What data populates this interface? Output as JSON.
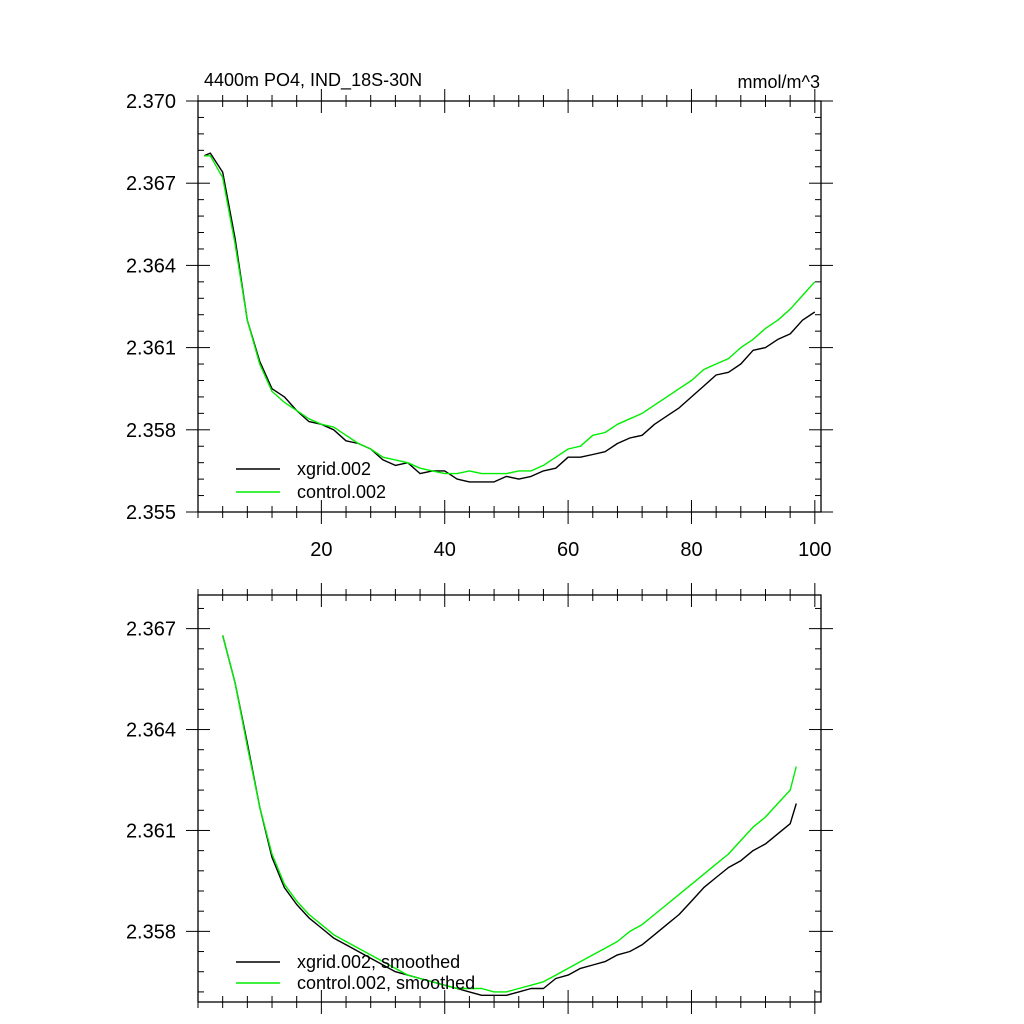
{
  "figure": {
    "title": "4400m PO4, IND_18S-30N",
    "units": "mmol/m^3"
  },
  "colors": {
    "series1": "#000000",
    "series2": "#00ee00",
    "axis": "#000000"
  },
  "chart_data": [
    {
      "type": "line",
      "title": "4400m PO4, IND_18S-30N",
      "units_label": "mmol/m^3",
      "xlabel": "",
      "ylabel": "",
      "xlim": [
        0,
        101
      ],
      "ylim": [
        2.355,
        2.37
      ],
      "xticks": [
        20,
        40,
        60,
        80,
        100
      ],
      "xtick_labels": [
        "20",
        "40",
        "60",
        "80",
        "100"
      ],
      "yticks": [
        2.355,
        2.358,
        2.361,
        2.364,
        2.367,
        2.37
      ],
      "ytick_labels": [
        "2.355",
        "2.358",
        "2.361",
        "2.364",
        "2.367",
        "2.370"
      ],
      "legend_position": "bottom-left",
      "series": [
        {
          "name": "xgrid.002",
          "color": "#000000",
          "x": [
            1,
            2,
            4,
            6,
            8,
            10,
            12,
            14,
            16,
            18,
            20,
            22,
            24,
            26,
            28,
            30,
            32,
            34,
            36,
            38,
            40,
            42,
            44,
            46,
            48,
            50,
            52,
            54,
            56,
            58,
            60,
            62,
            64,
            66,
            68,
            70,
            72,
            74,
            76,
            78,
            80,
            82,
            84,
            86,
            88,
            90,
            92,
            94,
            96,
            98,
            100
          ],
          "y": [
            2.368,
            2.3681,
            2.3674,
            2.365,
            2.362,
            2.3605,
            2.3595,
            2.3592,
            2.3587,
            2.3583,
            2.3582,
            2.358,
            2.3576,
            2.3575,
            2.3573,
            2.3569,
            2.3567,
            2.3568,
            2.3564,
            2.3565,
            2.3565,
            2.3562,
            2.3561,
            2.3561,
            2.3561,
            2.3563,
            2.3562,
            2.3563,
            2.3565,
            2.3566,
            2.357,
            2.357,
            2.3571,
            2.3572,
            2.3575,
            2.3577,
            2.3578,
            2.3582,
            2.3585,
            2.3588,
            2.3592,
            2.3596,
            2.36,
            2.3601,
            2.3604,
            2.3609,
            2.361,
            2.3613,
            2.3615,
            2.362,
            2.3623
          ]
        },
        {
          "name": "control.002",
          "color": "#00ee00",
          "x": [
            1,
            2,
            4,
            6,
            8,
            10,
            12,
            14,
            16,
            18,
            20,
            22,
            24,
            26,
            28,
            30,
            32,
            34,
            36,
            38,
            40,
            42,
            44,
            46,
            48,
            50,
            52,
            54,
            56,
            58,
            60,
            62,
            64,
            66,
            68,
            70,
            72,
            74,
            76,
            78,
            80,
            82,
            84,
            86,
            88,
            90,
            92,
            94,
            96,
            98,
            100
          ],
          "y": [
            2.368,
            2.368,
            2.3672,
            2.3648,
            2.362,
            2.3604,
            2.3594,
            2.359,
            2.3587,
            2.3584,
            2.3582,
            2.3581,
            2.3578,
            2.3575,
            2.3573,
            2.357,
            2.3569,
            2.3568,
            2.3566,
            2.3565,
            2.3564,
            2.3564,
            2.3565,
            2.3564,
            2.3564,
            2.3564,
            2.3565,
            2.3565,
            2.3567,
            2.357,
            2.3573,
            2.3574,
            2.3578,
            2.3579,
            2.3582,
            2.3584,
            2.3586,
            2.3589,
            2.3592,
            2.3595,
            2.3598,
            2.3602,
            2.3604,
            2.3606,
            2.361,
            2.3613,
            2.3617,
            2.362,
            2.3624,
            2.3629,
            2.3634
          ]
        }
      ]
    },
    {
      "type": "line",
      "title": "",
      "xlabel": "",
      "ylabel": "",
      "xlim": [
        0,
        101
      ],
      "ylim": [
        2.3559,
        2.368
      ],
      "xticks": [
        20,
        40,
        60,
        80,
        100
      ],
      "xtick_labels": [],
      "yticks": [
        2.358,
        2.361,
        2.364,
        2.367
      ],
      "ytick_labels": [
        "2.358",
        "2.361",
        "2.364",
        "2.367"
      ],
      "legend_position": "bottom-left",
      "series": [
        {
          "name": "xgrid.002, smoothed",
          "color": "#000000",
          "x": [
            4,
            6,
            8,
            10,
            12,
            14,
            16,
            18,
            20,
            22,
            24,
            26,
            28,
            30,
            32,
            34,
            36,
            38,
            40,
            42,
            44,
            46,
            48,
            50,
            52,
            54,
            56,
            58,
            60,
            62,
            64,
            66,
            68,
            70,
            72,
            74,
            76,
            78,
            80,
            82,
            84,
            86,
            88,
            90,
            92,
            94,
            96,
            97
          ],
          "y": [
            2.3668,
            2.3654,
            2.3636,
            2.3617,
            2.3602,
            2.3593,
            2.3588,
            2.3584,
            2.3581,
            2.3578,
            2.3576,
            2.3574,
            2.3572,
            2.357,
            2.3568,
            2.3567,
            2.3566,
            2.3565,
            2.3564,
            2.3563,
            2.3562,
            2.3561,
            2.3561,
            2.3561,
            2.3562,
            2.3563,
            2.3563,
            2.3566,
            2.3567,
            2.3569,
            2.357,
            2.3571,
            2.3573,
            2.3574,
            2.3576,
            2.3579,
            2.3582,
            2.3585,
            2.3589,
            2.3593,
            2.3596,
            2.3599,
            2.3601,
            2.3604,
            2.3606,
            2.3609,
            2.3612,
            2.3618
          ]
        },
        {
          "name": "control.002, smoothed",
          "color": "#00ee00",
          "x": [
            4,
            6,
            8,
            10,
            12,
            14,
            16,
            18,
            20,
            22,
            24,
            26,
            28,
            30,
            32,
            34,
            36,
            38,
            40,
            42,
            44,
            46,
            48,
            50,
            52,
            54,
            56,
            58,
            60,
            62,
            64,
            66,
            68,
            70,
            72,
            74,
            76,
            78,
            80,
            82,
            84,
            86,
            88,
            90,
            92,
            94,
            96,
            97
          ],
          "y": [
            2.3668,
            2.3654,
            2.3635,
            2.3617,
            2.3603,
            2.3594,
            2.3589,
            2.3585,
            2.3582,
            2.3579,
            2.3577,
            2.3575,
            2.3573,
            2.3571,
            2.3569,
            2.3567,
            2.3566,
            2.3565,
            2.3564,
            2.3563,
            2.3563,
            2.3563,
            2.3562,
            2.3562,
            2.3563,
            2.3564,
            2.3565,
            2.3567,
            2.3569,
            2.3571,
            2.3573,
            2.3575,
            2.3577,
            2.358,
            2.3582,
            2.3585,
            2.3588,
            2.3591,
            2.3594,
            2.3597,
            2.36,
            2.3603,
            2.3607,
            2.3611,
            2.3614,
            2.3618,
            2.3622,
            2.3629
          ]
        }
      ]
    }
  ]
}
